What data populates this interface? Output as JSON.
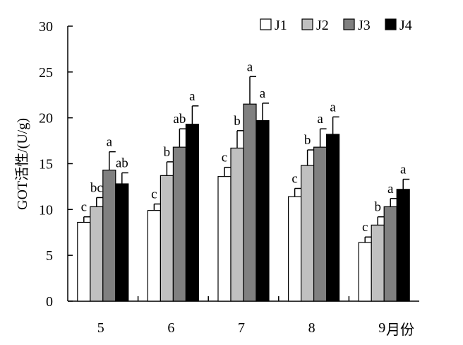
{
  "chart_data": {
    "type": "bar",
    "ylabel": "GOT活性/(U/g)",
    "xlabel": "月份",
    "categories": [
      "5",
      "6",
      "7",
      "8",
      "9"
    ],
    "ylim": [
      0,
      30
    ],
    "yticks": [
      0,
      5,
      10,
      15,
      20,
      25,
      30
    ],
    "legend_position": "top-right",
    "grid": false,
    "series": [
      {
        "name": "J1",
        "color": "#ffffff",
        "values": [
          8.6,
          9.9,
          13.6,
          11.4,
          6.4
        ],
        "errors": [
          0.6,
          0.7,
          1.0,
          0.9,
          0.6
        ],
        "labels": [
          "c",
          "c",
          "c",
          "c",
          "c"
        ]
      },
      {
        "name": "J2",
        "color": "#c0c0c0",
        "values": [
          10.3,
          13.7,
          16.7,
          14.8,
          8.3
        ],
        "errors": [
          1.0,
          1.5,
          1.9,
          1.7,
          0.9
        ],
        "labels": [
          "bc",
          "b",
          "b",
          "b",
          "b"
        ]
      },
      {
        "name": "J3",
        "color": "#808080",
        "values": [
          14.3,
          16.8,
          21.5,
          16.8,
          10.3
        ],
        "errors": [
          2.0,
          2.0,
          3.0,
          2.0,
          0.9
        ],
        "labels": [
          "a",
          "ab",
          "a",
          "a",
          "a"
        ]
      },
      {
        "name": "J4",
        "color": "#000000",
        "values": [
          12.8,
          19.3,
          19.7,
          18.2,
          12.2
        ],
        "errors": [
          1.2,
          2.0,
          1.9,
          1.9,
          1.1
        ],
        "labels": [
          "ab",
          "a",
          "a",
          "a",
          "a"
        ]
      }
    ]
  }
}
